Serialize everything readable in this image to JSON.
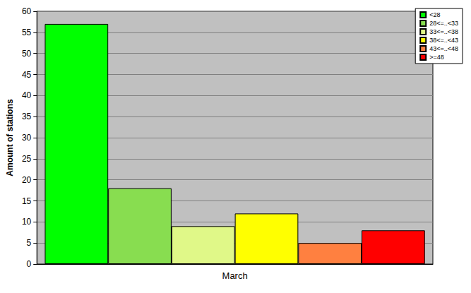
{
  "chart_data": {
    "type": "bar",
    "categories": [
      "March"
    ],
    "series": [
      {
        "name": "<28",
        "color": "#00ff00",
        "values": [
          57
        ]
      },
      {
        "name": "28<=..<33",
        "color": "#88dd50",
        "values": [
          18
        ]
      },
      {
        "name": "33<=..<38",
        "color": "#e0f888",
        "values": [
          9
        ]
      },
      {
        "name": "38<=..<43",
        "color": "#ffff00",
        "values": [
          12
        ]
      },
      {
        "name": "43<=..<48",
        "color": "#ff8040",
        "values": [
          5
        ]
      },
      {
        "name": ">=48",
        "color": "#ff0000",
        "values": [
          8
        ]
      }
    ],
    "ylabel": "Amount of stations",
    "ylim": [
      0,
      60
    ],
    "yticks": [
      0,
      5,
      10,
      15,
      20,
      25,
      30,
      35,
      40,
      45,
      50,
      55,
      60
    ],
    "grid": true,
    "legend": "top-right"
  }
}
